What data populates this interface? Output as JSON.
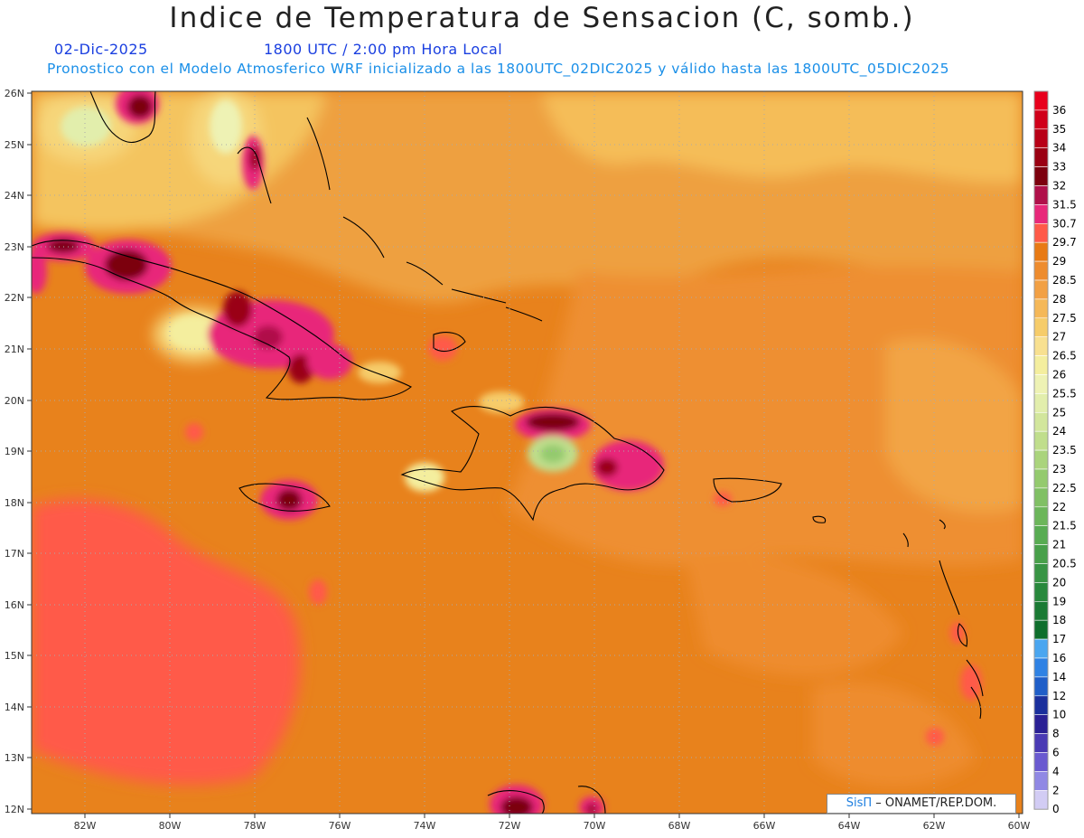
{
  "header": {
    "title": "Indice de Temperatura de Sensacion (C, somb.)",
    "date": "02-Dic-2025",
    "time": "1800 UTC / 2:00 pm Hora Local",
    "model_info": "Pronostico con el Modelo Atmosferico WRF inicializado a las 1800UTC_02DIC2025 y válido hasta las  1800UTC_05DIC2025"
  },
  "colors": {
    "date": "#1a3fe0",
    "info": "#1a8fe8"
  },
  "axes": {
    "lat_labels": [
      "26N",
      "25N",
      "24N",
      "23N",
      "22N",
      "21N",
      "20N",
      "19N",
      "18N",
      "17N",
      "16N",
      "15N",
      "14N",
      "13N",
      "12N"
    ],
    "lon_labels": [
      "82W",
      "80W",
      "78W",
      "76W",
      "74W",
      "72W",
      "70W",
      "68W",
      "66W",
      "64W",
      "62W",
      "60W"
    ]
  },
  "colorbar": {
    "levels": [
      "36",
      "35",
      "34",
      "33",
      "32",
      "31.5",
      "30.7",
      "29.7",
      "29",
      "28.5",
      "28",
      "27.5",
      "27",
      "26.5",
      "26",
      "25.5",
      "25",
      "24",
      "23.5",
      "23",
      "22.5",
      "22",
      "21.5",
      "21",
      "20.5",
      "20",
      "19",
      "18",
      "17",
      "16",
      "14",
      "12",
      "10",
      "8",
      "6",
      "4",
      "2",
      "0"
    ],
    "colors": [
      "#e8001c",
      "#d0001a",
      "#b80016",
      "#9a0012",
      "#7c000e",
      "#b0104a",
      "#e8287a",
      "#ff5a48",
      "#e87a14",
      "#ee8c2e",
      "#f2a044",
      "#f5b858",
      "#f6cc6a",
      "#f8e090",
      "#f4ee9e",
      "#eef2b4",
      "#e2eeac",
      "#d2e69c",
      "#c0de8c",
      "#aad47c",
      "#94ca6e",
      "#80c064",
      "#6cb65a",
      "#58ac52",
      "#48a04a",
      "#389444",
      "#28883c",
      "#1a7a34",
      "#0e6e2c",
      "#4aa6f0",
      "#2f82e4",
      "#1f5ec8",
      "#1a2f9c",
      "#2a2094",
      "#4a3ab4",
      "#6a5ad0",
      "#9088e4",
      "#d2ccf4"
    ]
  },
  "credit": {
    "brand": "SisΠ",
    "text": "– ONAMET/REP.DOM."
  }
}
